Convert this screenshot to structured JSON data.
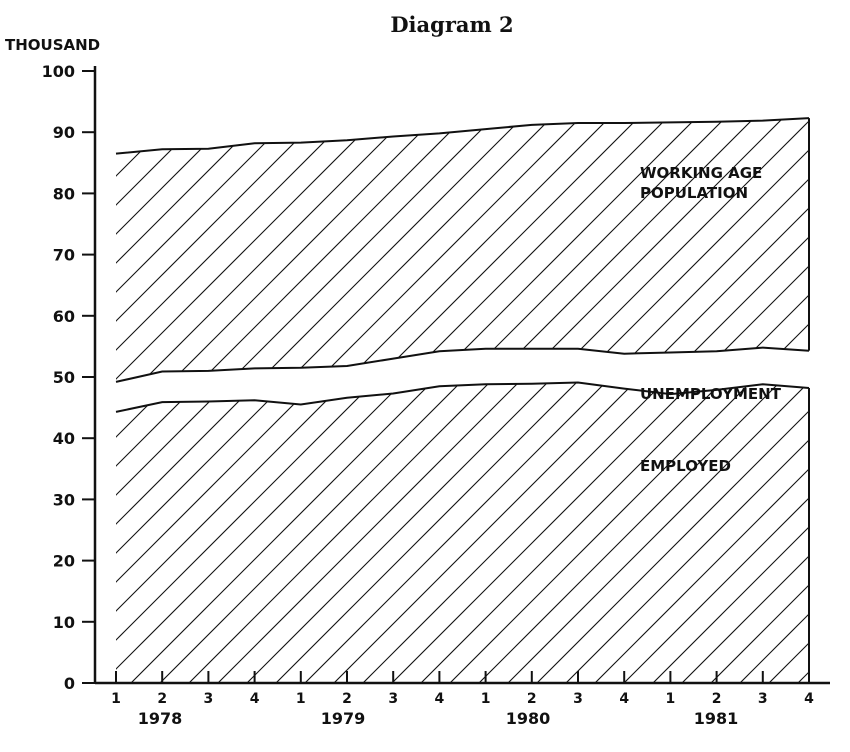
{
  "chart_data": {
    "type": "area",
    "title": "Diagram 2",
    "ylabel": "THOUSAND",
    "xlabel": "",
    "ylim": [
      0,
      100
    ],
    "yticks": [
      0,
      10,
      20,
      30,
      40,
      50,
      60,
      70,
      80,
      90,
      100
    ],
    "quarters": [
      "1",
      "2",
      "3",
      "4",
      "1",
      "2",
      "3",
      "4",
      "1",
      "2",
      "3",
      "4",
      "1",
      "2",
      "3",
      "4"
    ],
    "years": [
      "1978",
      "1979",
      "1980",
      "1981"
    ],
    "series": [
      {
        "name": "WORKING AGE POPULATION",
        "values": [
          86.5,
          87.2,
          87.3,
          88.2,
          88.3,
          88.7,
          89.3,
          89.8,
          90.5,
          91.2,
          91.5,
          91.5,
          91.6,
          91.7,
          91.9,
          92.3
        ]
      },
      {
        "name": "UNEMPLOYMENT",
        "values": [
          49.2,
          50.9,
          51.0,
          51.4,
          51.5,
          51.8,
          53.0,
          54.2,
          54.6,
          54.6,
          54.6,
          53.8,
          54.0,
          54.2,
          54.8,
          54.3
        ]
      },
      {
        "name": "EMPLOYED",
        "values": [
          44.3,
          45.9,
          46.0,
          46.2,
          45.5,
          46.6,
          47.3,
          48.5,
          48.8,
          48.9,
          49.1,
          48.1,
          47.2,
          47.9,
          48.8,
          48.2
        ]
      }
    ]
  }
}
